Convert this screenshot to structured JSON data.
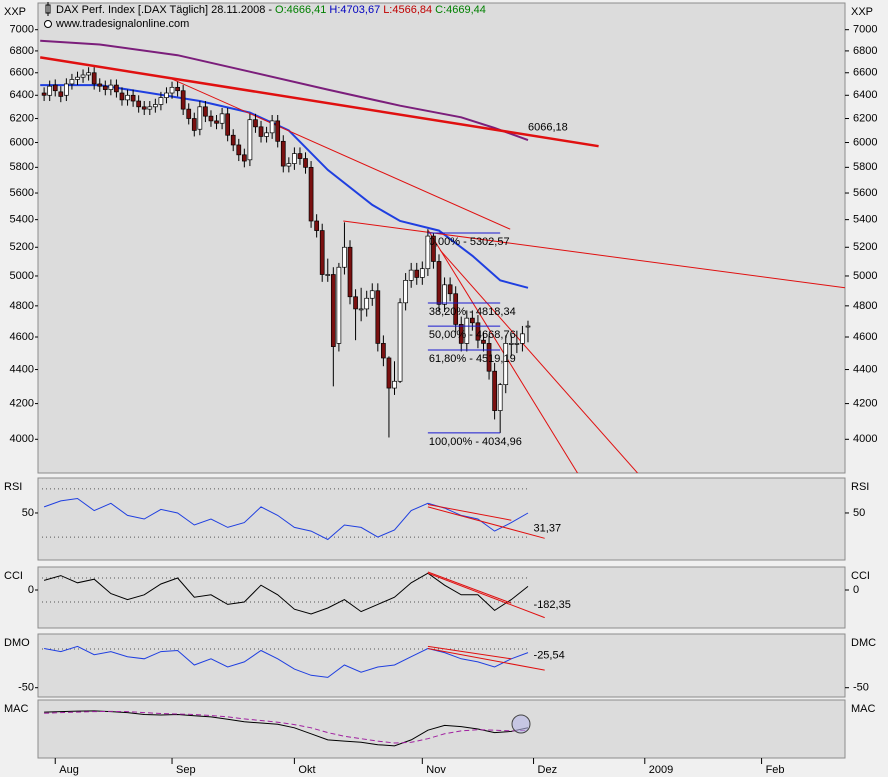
{
  "chart_data": [
    {
      "type": "candlestick",
      "title": "DAX Perf. Index [.DAX  Täglich] 28.11.2008 -",
      "header_values": [
        {
          "label": "O:4666,41",
          "color": "#008000"
        },
        {
          "label": "H:4703,67",
          "color": "#0000c0"
        },
        {
          "label": "L:4566,84",
          "color": "#c00000"
        },
        {
          "label": "C:4669,44",
          "color": "#008000"
        }
      ],
      "subtitle": "www.tradesignalonline.com",
      "label": "XXP",
      "log_scale": true,
      "xlim": [
        0.9,
        146
      ],
      "ylim": [
        3820,
        7260
      ],
      "yticks": [
        4000,
        4200,
        4400,
        4600,
        4800,
        5000,
        5200,
        5400,
        5600,
        5800,
        6000,
        6200,
        6400,
        6600,
        6800,
        7000
      ],
      "up_color": "#ffffff",
      "down_color": "#7a1010",
      "x": [
        2,
        3,
        4,
        5,
        6,
        7,
        8,
        9,
        10,
        11,
        12,
        13,
        14,
        15,
        16,
        17,
        18,
        19,
        20,
        21,
        22,
        23,
        24,
        25,
        26,
        27,
        28,
        29,
        30,
        31,
        32,
        33,
        34,
        35,
        36,
        37,
        38,
        39,
        40,
        41,
        42,
        43,
        44,
        45,
        46,
        47,
        48,
        49,
        50,
        51,
        52,
        53,
        54,
        55,
        56,
        57,
        58,
        59,
        60,
        61,
        62,
        63,
        64,
        65,
        66,
        67,
        68,
        69,
        70,
        71,
        72,
        73,
        74,
        75,
        76,
        77,
        78,
        79,
        80,
        81,
        82,
        83,
        84,
        85,
        86,
        87,
        88,
        89
      ],
      "open": [
        6420,
        6400,
        6490,
        6430,
        6400,
        6500,
        6540,
        6560,
        6580,
        6600,
        6500,
        6480,
        6450,
        6490,
        6420,
        6360,
        6400,
        6350,
        6300,
        6280,
        6300,
        6320,
        6380,
        6420,
        6470,
        6440,
        6280,
        6200,
        6110,
        6300,
        6220,
        6180,
        6160,
        6240,
        6060,
        5980,
        5900,
        5860,
        6190,
        6130,
        6050,
        6080,
        6180,
        6010,
        5810,
        5830,
        5910,
        5870,
        5800,
        5390,
        5320,
        5010,
        5010,
        4560,
        5060,
        5200,
        4860,
        4780,
        4780,
        4850,
        4900,
        4560,
        4470,
        4290,
        4330,
        4820,
        4970,
        5040,
        4990,
        5050,
        5280,
        5100,
        4810,
        4940,
        4880,
        4680,
        4560,
        4720,
        4690,
        4580,
        4560,
        4390,
        4160,
        4310,
        4560,
        4560,
        4560,
        4666.41
      ],
      "high": [
        6470,
        6530,
        6540,
        6480,
        6550,
        6590,
        6610,
        6630,
        6650,
        6650,
        6550,
        6530,
        6540,
        6540,
        6470,
        6450,
        6450,
        6400,
        6350,
        6350,
        6370,
        6430,
        6470,
        6520,
        6520,
        6490,
        6330,
        6250,
        6350,
        6350,
        6270,
        6230,
        6290,
        6290,
        6110,
        6030,
        5950,
        6240,
        6240,
        6180,
        6130,
        6230,
        6230,
        6060,
        5880,
        5960,
        5960,
        5920,
        5850,
        5440,
        5370,
        5120,
        5060,
        5090,
        5380,
        5250,
        4910,
        4920,
        4900,
        4950,
        4950,
        4610,
        4480,
        4450,
        4850,
        5020,
        5090,
        5090,
        5100,
        5330,
        5300,
        5150,
        4990,
        4990,
        4930,
        4730,
        4770,
        4770,
        4740,
        4630,
        4610,
        4440,
        4320,
        4610,
        4610,
        4640,
        4670,
        4703.67
      ],
      "low": [
        6350,
        6350,
        6390,
        6340,
        6350,
        6450,
        6490,
        6510,
        6530,
        6450,
        6430,
        6400,
        6400,
        6380,
        6310,
        6310,
        6300,
        6250,
        6230,
        6230,
        6250,
        6270,
        6330,
        6370,
        6390,
        6230,
        6150,
        6050,
        6060,
        6170,
        6130,
        6110,
        6110,
        6010,
        5930,
        5850,
        5800,
        5810,
        6080,
        6000,
        6000,
        6030,
        5960,
        5760,
        5760,
        5780,
        5820,
        5750,
        5340,
        5270,
        4960,
        4960,
        4300,
        4510,
        5010,
        4810,
        4580,
        4700,
        4730,
        4800,
        4510,
        4420,
        4010,
        4250,
        4320,
        4770,
        4920,
        4940,
        4940,
        5000,
        5050,
        4760,
        4760,
        4830,
        4630,
        4510,
        4510,
        4640,
        4530,
        4510,
        4340,
        4110,
        4035,
        4260,
        4480,
        4500,
        4510,
        4566.84
      ],
      "close": [
        6400,
        6480,
        6440,
        6390,
        6500,
        6540,
        6560,
        6580,
        6600,
        6500,
        6480,
        6450,
        6490,
        6430,
        6360,
        6400,
        6350,
        6300,
        6280,
        6300,
        6320,
        6380,
        6420,
        6470,
        6440,
        6280,
        6200,
        6100,
        6300,
        6220,
        6180,
        6160,
        6240,
        6060,
        5980,
        5900,
        5850,
        6190,
        6130,
        6050,
        6080,
        6180,
        6010,
        5810,
        5830,
        5910,
        5870,
        5800,
        5390,
        5320,
        5010,
        5010,
        4540,
        5060,
        5200,
        4860,
        4780,
        4780,
        4850,
        4900,
        4560,
        4470,
        4290,
        4330,
        4820,
        4970,
        5040,
        4990,
        5050,
        5280,
        5100,
        4810,
        4940,
        4880,
        4680,
        4560,
        4720,
        4690,
        4580,
        4560,
        4390,
        4160,
        4310,
        4560,
        4560,
        4560,
        4620,
        4669.44
      ],
      "series": [
        {
          "color": "#7b1e7b",
          "width": 2,
          "x": [
            1.3,
            12,
            26,
            39,
            53,
            66,
            77,
            83,
            89
          ],
          "values": [
            6895,
            6860,
            6760,
            6610,
            6450,
            6310,
            6210,
            6120,
            6020
          ]
        },
        {
          "color": "#1f3fe0",
          "width": 2,
          "x": [
            1.3,
            12,
            21,
            30,
            39,
            46,
            53,
            61,
            66,
            73,
            79,
            84,
            89
          ],
          "values": [
            6490,
            6490,
            6420,
            6350,
            6250,
            6100,
            5780,
            5510,
            5390,
            5320,
            5140,
            4970,
            4920
          ]
        },
        {
          "color": "#e01010",
          "width": 2.5,
          "x": [
            1.3,
            101.7
          ],
          "values": [
            6740,
            5970
          ]
        },
        {
          "color": "#e01010",
          "width": 1,
          "x": [
            24.7,
            85.8
          ],
          "values": [
            6550,
            5330
          ]
        },
        {
          "color": "#e01010",
          "width": 1,
          "x": [
            55.8,
            146
          ],
          "values": [
            5390,
            4920
          ]
        },
        {
          "color": "#e01010",
          "width": 1,
          "x": [
            71.1,
            97.9
          ],
          "values": [
            5320,
            3820
          ]
        },
        {
          "color": "#e01010",
          "width": 1,
          "x": [
            73.2,
            108.7
          ],
          "values": [
            5180,
            3820
          ]
        }
      ],
      "fib_x": [
        71,
        84
      ],
      "fib_color": "#1a1ad0",
      "fib_levels": [
        {
          "label": "0,00% - 5302,57",
          "value": 5302.57
        },
        {
          "label": "38,20% - 4818,34",
          "value": 4818.34
        },
        {
          "label": "50,00% - 4668,76",
          "value": 4668.76
        },
        {
          "label": "61,80% - 4519,19",
          "value": 4519.19
        },
        {
          "label": "100,00% - 4034,96",
          "value": 4034.96
        }
      ],
      "annotations": [
        {
          "label": "6066,18",
          "value": 6066.18,
          "x": 89,
          "color": "#e01010"
        }
      ]
    },
    {
      "type": "line",
      "label": "RSI",
      "xlim": [
        0.9,
        146
      ],
      "ylim": [
        11,
        79
      ],
      "yticks": [
        50
      ],
      "ref_lines": [
        30,
        70
      ],
      "x": [
        2,
        5,
        8,
        11,
        14,
        17,
        20,
        23,
        26,
        29,
        32,
        35,
        38,
        41,
        44,
        47,
        50,
        53,
        56,
        59,
        62,
        65,
        68,
        71,
        74,
        77,
        80,
        83,
        86,
        89
      ],
      "series": [
        {
          "color": "#1f3fe0",
          "width": 1,
          "values": [
            55,
            60,
            62,
            52,
            58,
            48,
            45,
            53,
            50,
            40,
            45,
            38,
            42,
            55,
            48,
            38,
            35,
            28,
            40,
            38,
            30,
            36,
            52,
            58,
            54,
            48,
            45,
            35,
            42,
            50
          ]
        },
        {
          "color": "#e01010",
          "width": 1,
          "x": [
            71,
            92
          ],
          "values": [
            55,
            29
          ]
        },
        {
          "color": "#e01010",
          "width": 1,
          "x": [
            71,
            86
          ],
          "values": [
            57,
            44
          ]
        }
      ],
      "annotations": [
        {
          "label": "31,37",
          "value": 31.37,
          "x": 90,
          "color": "#e01010"
        }
      ]
    },
    {
      "type": "line",
      "label": "CCI",
      "xlim": [
        0.9,
        146
      ],
      "ylim": [
        -317,
        192
      ],
      "yticks": [
        0
      ],
      "ref_lines": [
        100,
        -100
      ],
      "x": [
        2,
        5,
        8,
        11,
        14,
        17,
        20,
        23,
        26,
        29,
        32,
        35,
        38,
        41,
        44,
        47,
        50,
        53,
        56,
        59,
        62,
        65,
        68,
        71,
        74,
        77,
        80,
        83,
        86,
        89
      ],
      "series": [
        {
          "color": "#000000",
          "width": 1,
          "values": [
            80,
            120,
            60,
            90,
            -30,
            -80,
            -40,
            50,
            100,
            -60,
            -40,
            -120,
            -100,
            40,
            -40,
            -160,
            -200,
            -150,
            -80,
            -180,
            -120,
            -60,
            60,
            140,
            40,
            -40,
            -40,
            -170,
            -80,
            30
          ]
        },
        {
          "color": "#e01010",
          "width": 1,
          "x": [
            71,
            92
          ],
          "values": [
            140,
            -230
          ]
        },
        {
          "color": "#e01010",
          "width": 1,
          "x": [
            71,
            86
          ],
          "values": [
            150,
            -110
          ]
        }
      ],
      "annotations": [
        {
          "label": "-182,35",
          "value": -182.35,
          "x": 90,
          "color": "#e01010"
        }
      ]
    },
    {
      "type": "line",
      "label": "DMO",
      "right_label": "DMC",
      "xlim": [
        0.9,
        146
      ],
      "ylim": [
        -59,
        2
      ],
      "yticks": [
        -50
      ],
      "ref_lines": [
        -12.5
      ],
      "x": [
        2,
        5,
        8,
        11,
        14,
        17,
        20,
        23,
        26,
        29,
        32,
        35,
        38,
        41,
        44,
        47,
        50,
        53,
        56,
        59,
        62,
        65,
        68,
        71,
        74,
        77,
        80,
        83,
        86,
        89
      ],
      "series": [
        {
          "color": "#1f3fe0",
          "width": 1,
          "values": [
            -12,
            -15,
            -10,
            -18,
            -15,
            -20,
            -22,
            -15,
            -14,
            -28,
            -22,
            -30,
            -25,
            -14,
            -22,
            -32,
            -38,
            -40,
            -28,
            -35,
            -30,
            -28,
            -20,
            -12,
            -16,
            -22,
            -25,
            -30,
            -22,
            -16
          ]
        },
        {
          "color": "#e01010",
          "width": 1,
          "x": [
            71,
            92
          ],
          "values": [
            -12,
            -33
          ]
        },
        {
          "color": "#e01010",
          "width": 1,
          "x": [
            71,
            86
          ],
          "values": [
            -10,
            -22
          ]
        }
      ],
      "annotations": [
        {
          "label": "-25,54",
          "value": -25.54,
          "x": 90,
          "color": "#e01010"
        }
      ]
    },
    {
      "type": "line",
      "label": "MAC",
      "xlim": [
        0.9,
        146
      ],
      "ylim": [
        -120,
        120
      ],
      "x": [
        2,
        5,
        8,
        11,
        14,
        17,
        20,
        23,
        26,
        29,
        32,
        35,
        38,
        41,
        44,
        47,
        50,
        53,
        56,
        59,
        62,
        65,
        68,
        71,
        74,
        77,
        80,
        83,
        86,
        89
      ],
      "series": [
        {
          "color": "#000000",
          "width": 1,
          "values": [
            70,
            72,
            74,
            75,
            72,
            68,
            60,
            58,
            60,
            55,
            50,
            40,
            30,
            25,
            20,
            5,
            -20,
            -45,
            -50,
            -55,
            -65,
            -70,
            -45,
            -5,
            15,
            10,
            0,
            -15,
            -10,
            5
          ]
        },
        {
          "color": "#a020a0",
          "width": 1,
          "dash": true,
          "values": [
            65,
            68,
            70,
            72,
            73,
            72,
            68,
            64,
            62,
            60,
            56,
            50,
            42,
            35,
            28,
            18,
            5,
            -15,
            -30,
            -40,
            -50,
            -58,
            -55,
            -40,
            -20,
            -8,
            -3,
            -5,
            -8,
            -5
          ]
        }
      ],
      "xticks": [
        {
          "value": 4,
          "label": "Aug"
        },
        {
          "value": 25,
          "label": "Sep"
        },
        {
          "value": 47,
          "label": "Okt"
        },
        {
          "value": 70,
          "label": "Nov"
        },
        {
          "value": 90,
          "label": "Dez"
        },
        {
          "value": 110,
          "label": "2009"
        },
        {
          "value": 131,
          "label": "Feb"
        }
      ]
    }
  ]
}
